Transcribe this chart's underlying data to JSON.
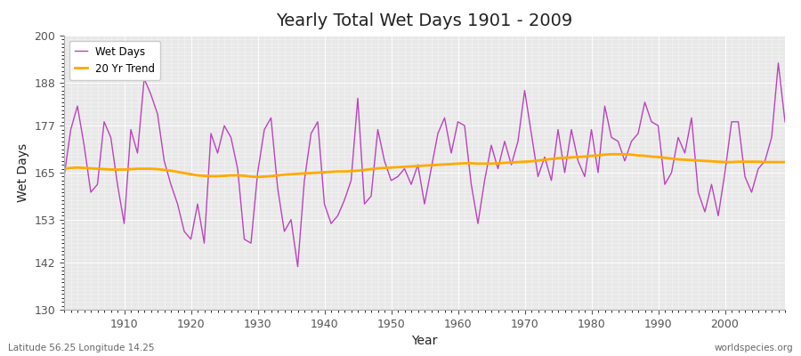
{
  "title": "Yearly Total Wet Days 1901 - 2009",
  "xlabel": "Year",
  "ylabel": "Wet Days",
  "bottom_left_label": "Latitude 56.25 Longitude 14.25",
  "bottom_right_label": "worldspecies.org",
  "wet_days_color": "#bb44bb",
  "trend_color": "#ffaa00",
  "background_color": "#e8e8e8",
  "fig_background": "#ffffff",
  "ylim": [
    130,
    200
  ],
  "yticks": [
    130,
    142,
    153,
    165,
    177,
    188,
    200
  ],
  "xlim": [
    1901,
    2009
  ],
  "xticks": [
    1910,
    1920,
    1930,
    1940,
    1950,
    1960,
    1970,
    1980,
    1990,
    2000
  ],
  "years": [
    1901,
    1902,
    1903,
    1904,
    1905,
    1906,
    1907,
    1908,
    1909,
    1910,
    1911,
    1912,
    1913,
    1914,
    1915,
    1916,
    1917,
    1918,
    1919,
    1920,
    1921,
    1922,
    1923,
    1924,
    1925,
    1926,
    1927,
    1928,
    1929,
    1930,
    1931,
    1932,
    1933,
    1934,
    1935,
    1936,
    1937,
    1938,
    1939,
    1940,
    1941,
    1942,
    1943,
    1944,
    1945,
    1946,
    1947,
    1948,
    1949,
    1950,
    1951,
    1952,
    1953,
    1954,
    1955,
    1956,
    1957,
    1958,
    1959,
    1960,
    1961,
    1962,
    1963,
    1964,
    1965,
    1966,
    1967,
    1968,
    1969,
    1970,
    1971,
    1972,
    1973,
    1974,
    1975,
    1976,
    1977,
    1978,
    1979,
    1980,
    1981,
    1982,
    1983,
    1984,
    1985,
    1986,
    1987,
    1988,
    1989,
    1990,
    1991,
    1992,
    1993,
    1994,
    1995,
    1996,
    1997,
    1998,
    1999,
    2000,
    2001,
    2002,
    2003,
    2004,
    2005,
    2006,
    2007,
    2008,
    2009
  ],
  "wet_days": [
    164,
    176,
    182,
    172,
    160,
    162,
    178,
    174,
    162,
    152,
    176,
    170,
    189,
    185,
    180,
    168,
    162,
    157,
    150,
    148,
    157,
    147,
    175,
    170,
    177,
    174,
    166,
    148,
    147,
    165,
    176,
    179,
    161,
    150,
    153,
    141,
    163,
    175,
    178,
    157,
    152,
    154,
    158,
    163,
    184,
    157,
    159,
    176,
    168,
    163,
    164,
    166,
    162,
    167,
    157,
    166,
    175,
    179,
    170,
    178,
    177,
    162,
    152,
    163,
    172,
    166,
    173,
    167,
    173,
    186,
    175,
    164,
    169,
    163,
    176,
    165,
    176,
    168,
    164,
    176,
    165,
    182,
    174,
    173,
    168,
    173,
    175,
    183,
    178,
    177,
    162,
    165,
    174,
    170,
    179,
    160,
    155,
    162,
    154,
    165,
    178,
    178,
    164,
    160,
    166,
    168,
    174,
    193,
    178
  ],
  "trend": [
    166.0,
    166.2,
    166.3,
    166.2,
    166.1,
    166.0,
    165.9,
    165.8,
    165.8,
    165.8,
    165.9,
    166.0,
    166.0,
    166.0,
    165.9,
    165.7,
    165.5,
    165.2,
    164.9,
    164.6,
    164.3,
    164.2,
    164.1,
    164.1,
    164.2,
    164.3,
    164.3,
    164.2,
    164.0,
    163.9,
    164.0,
    164.1,
    164.3,
    164.5,
    164.6,
    164.7,
    164.8,
    164.9,
    165.0,
    165.1,
    165.2,
    165.3,
    165.3,
    165.4,
    165.5,
    165.7,
    165.9,
    166.1,
    166.2,
    166.3,
    166.4,
    166.5,
    166.6,
    166.7,
    166.8,
    166.9,
    167.0,
    167.1,
    167.2,
    167.3,
    167.4,
    167.4,
    167.3,
    167.3,
    167.3,
    167.4,
    167.5,
    167.6,
    167.7,
    167.8,
    167.9,
    168.1,
    168.3,
    168.5,
    168.7,
    168.8,
    168.9,
    169.0,
    169.1,
    169.3,
    169.4,
    169.6,
    169.7,
    169.7,
    169.7,
    169.6,
    169.4,
    169.3,
    169.1,
    169.0,
    168.8,
    168.6,
    168.4,
    168.3,
    168.2,
    168.1,
    168.0,
    167.9,
    167.8,
    167.7,
    167.7,
    167.8,
    167.8,
    167.8,
    167.8,
    167.7,
    167.7,
    167.7,
    167.7
  ]
}
